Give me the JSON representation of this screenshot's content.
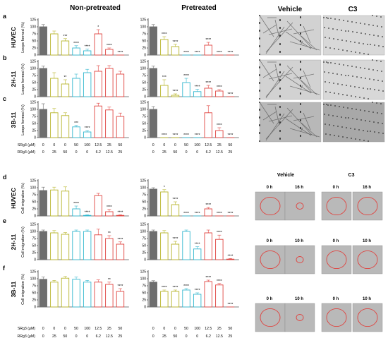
{
  "headers": {
    "non_pretreated": "Non-pretreated",
    "pretreated": "Pretreated",
    "vehicle": "Vehicle",
    "c3": "C3"
  },
  "colors": {
    "gray": "#6e6e6e",
    "olive": "#b7b42a",
    "cyan": "#33b7cf",
    "red": "#e0433f"
  },
  "conditions": {
    "srg3_label": "SRg3 (μM)",
    "rrg3_label": "RRg3 (μM)",
    "srg3": [
      "0",
      "0",
      "0",
      "50",
      "100",
      "12.5",
      "25",
      "50"
    ],
    "rrg3": [
      "0",
      "25",
      "50",
      "0",
      "0",
      "6.2",
      "12.5",
      "25"
    ]
  },
  "rows": [
    {
      "letter": "a",
      "label": "HUVEC",
      "ylabel": "Loops formed (%)",
      "ylim": [
        0,
        125
      ],
      "yticks": [
        "0",
        "25",
        "50",
        "75",
        "100",
        "125"
      ]
    },
    {
      "letter": "b",
      "label": "2H-11",
      "ylabel": "Loops formed (%)",
      "ylim": [
        0,
        125
      ],
      "yticks": [
        "0",
        "25",
        "50",
        "75",
        "100",
        "125"
      ]
    },
    {
      "letter": "c",
      "label": "3B-11",
      "ylabel": "Loops formed (%)",
      "ylim": [
        0,
        125
      ],
      "yticks": [
        "0",
        "25",
        "50",
        "75",
        "100",
        "125"
      ]
    },
    {
      "letter": "d",
      "label": "HUVEC",
      "ylabel": "Cell migration (%)",
      "ylim": [
        0,
        125
      ],
      "yticks": [
        "0",
        "25",
        "50",
        "75",
        "100",
        "125"
      ]
    },
    {
      "letter": "e",
      "label": "2H-11",
      "ylabel": "Cell migration (%)",
      "ylim": [
        0,
        125
      ],
      "yticks": [
        "0",
        "25",
        "50",
        "75",
        "100",
        "125"
      ]
    },
    {
      "letter": "f",
      "label": "3B-11",
      "ylabel": "Cell migration (%)",
      "ylim": [
        0,
        125
      ],
      "yticks": [
        "0",
        "25",
        "50",
        "75",
        "100",
        "125"
      ]
    }
  ],
  "chart_data": [
    {
      "type": "bar",
      "row": "a",
      "group": "Non-pretreated",
      "values": [
        100,
        75,
        50,
        25,
        15,
        75,
        20,
        0
      ],
      "errors": [
        8,
        10,
        8,
        8,
        6,
        15,
        5,
        0
      ],
      "stars": [
        "",
        "",
        "***",
        "****",
        "****",
        "*",
        "****",
        "****"
      ]
    },
    {
      "type": "bar",
      "row": "a",
      "group": "Pretreated",
      "values": [
        100,
        55,
        30,
        0,
        0,
        35,
        0,
        0
      ],
      "errors": [
        8,
        10,
        8,
        0,
        0,
        10,
        0,
        0
      ],
      "stars": [
        "",
        "****",
        "****",
        "****",
        "****",
        "****",
        "****",
        "****"
      ]
    },
    {
      "type": "bar",
      "row": "b",
      "group": "Non-pretreated",
      "values": [
        100,
        65,
        45,
        65,
        85,
        90,
        100,
        80
      ],
      "errors": [
        8,
        20,
        15,
        15,
        12,
        20,
        10,
        10
      ],
      "stars": [
        "",
        "",
        "**",
        "",
        "",
        "",
        "",
        ""
      ]
    },
    {
      "type": "bar",
      "row": "b",
      "group": "Pretreated",
      "values": [
        100,
        40,
        5,
        50,
        18,
        30,
        20,
        0
      ],
      "errors": [
        8,
        20,
        5,
        15,
        8,
        10,
        5,
        0
      ],
      "stars": [
        "",
        "***",
        "****",
        "****",
        "****",
        "****",
        "****",
        "****"
      ]
    },
    {
      "type": "bar",
      "row": "c",
      "group": "Non-pretreated",
      "values": [
        100,
        88,
        78,
        38,
        20,
        112,
        98,
        75
      ],
      "errors": [
        20,
        15,
        10,
        5,
        5,
        10,
        10,
        12
      ],
      "stars": [
        "",
        "",
        "",
        "***",
        "****",
        "",
        "",
        ""
      ]
    },
    {
      "type": "bar",
      "row": "c",
      "group": "Pretreated",
      "values": [
        100,
        0,
        0,
        0,
        0,
        88,
        25,
        0
      ],
      "errors": [
        10,
        0,
        0,
        0,
        0,
        25,
        10,
        0
      ],
      "stars": [
        "",
        "****",
        "****",
        "****",
        "****",
        "",
        "****",
        "****"
      ]
    },
    {
      "type": "bar",
      "row": "d",
      "group": "Non-pretreated",
      "values": [
        90,
        92,
        88,
        25,
        2,
        72,
        15,
        2
      ],
      "errors": [
        12,
        10,
        15,
        10,
        2,
        8,
        8,
        2
      ],
      "stars": [
        "",
        "",
        "",
        "****",
        "****",
        "",
        "****",
        "****"
      ]
    },
    {
      "type": "bar",
      "row": "d",
      "group": "Pretreated",
      "values": [
        95,
        85,
        40,
        0,
        0,
        25,
        0,
        0
      ],
      "errors": [
        5,
        8,
        10,
        0,
        0,
        5,
        0,
        0
      ],
      "stars": [
        "",
        "*",
        "****",
        "****",
        "****",
        "****",
        "****",
        "****"
      ]
    },
    {
      "type": "bar",
      "row": "e",
      "group": "Non-pretreated",
      "values": [
        100,
        95,
        90,
        100,
        100,
        88,
        75,
        55
      ],
      "errors": [
        5,
        8,
        6,
        5,
        5,
        20,
        10,
        8
      ],
      "stars": [
        "",
        "",
        "",
        "",
        "",
        "",
        "**",
        "****"
      ]
    },
    {
      "type": "bar",
      "row": "e",
      "group": "Pretreated",
      "values": [
        100,
        95,
        55,
        100,
        38,
        95,
        72,
        2
      ],
      "errors": [
        5,
        8,
        10,
        5,
        8,
        10,
        15,
        2
      ],
      "stars": [
        "",
        "",
        "****",
        "",
        "****",
        "",
        "****",
        "****"
      ]
    },
    {
      "type": "bar",
      "row": "f",
      "group": "Non-pretreated",
      "values": [
        98,
        88,
        102,
        98,
        88,
        88,
        80,
        55
      ],
      "errors": [
        8,
        6,
        6,
        8,
        6,
        8,
        8,
        10
      ],
      "stars": [
        "",
        "",
        "",
        "",
        "",
        "",
        "**",
        "****"
      ]
    },
    {
      "type": "bar",
      "row": "f",
      "group": "Pretreated",
      "values": [
        88,
        55,
        55,
        60,
        45,
        90,
        78,
        0
      ],
      "errors": [
        5,
        5,
        5,
        5,
        5,
        5,
        5,
        0
      ],
      "stars": [
        "",
        "****",
        "****",
        "****",
        "****",
        "****",
        "****",
        "****"
      ]
    }
  ],
  "micrographs": {
    "tube_rows": [
      "HUVEC",
      "2H-11",
      "3B-11"
    ],
    "migration": [
      {
        "row": "d",
        "vehicle_times": [
          "0 h",
          "16 h"
        ],
        "c3_times": [
          "0 h",
          "16 h"
        ]
      },
      {
        "row": "e",
        "vehicle_times": [
          "0 h",
          "10 h"
        ],
        "c3_times": [
          "0 h",
          "10 h"
        ]
      },
      {
        "row": "f",
        "vehicle_times": [
          "0 h",
          "10 h"
        ],
        "c3_times": [
          "0 h",
          "10 h"
        ]
      }
    ]
  }
}
